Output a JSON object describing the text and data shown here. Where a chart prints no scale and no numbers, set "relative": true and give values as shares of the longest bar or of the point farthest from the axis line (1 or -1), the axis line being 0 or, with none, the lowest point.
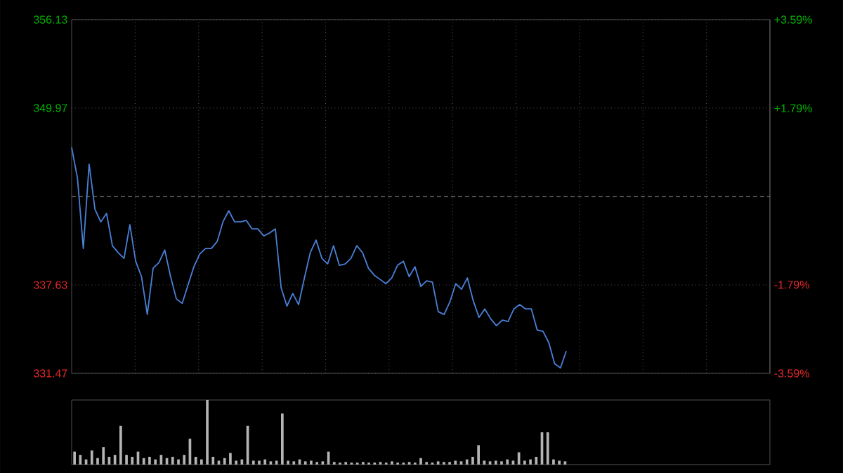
{
  "chart_data": [
    {
      "type": "line",
      "categories": [
        null,
        null,
        null,
        null,
        null,
        null,
        null,
        null,
        null,
        null,
        null,
        null,
        null,
        null,
        null,
        null,
        null,
        null,
        null,
        null,
        null,
        null,
        null,
        null,
        null,
        null,
        null,
        null,
        null,
        null,
        null,
        null,
        null,
        null,
        null,
        null,
        null,
        null,
        null,
        null,
        null,
        null,
        null,
        null,
        null,
        null,
        null,
        null,
        null,
        null,
        null,
        null,
        null,
        null,
        null,
        null,
        null,
        null,
        null,
        null,
        null,
        null,
        null,
        null,
        null,
        null,
        null,
        null,
        null,
        null,
        null,
        null,
        null,
        null,
        null,
        null,
        null,
        null,
        null,
        null,
        null,
        null,
        null,
        null,
        null,
        null,
        null,
        null,
        null,
        null,
        null,
        null,
        null,
        null,
        null,
        null,
        null,
        null,
        null,
        null,
        null,
        null,
        null,
        null,
        null,
        null,
        null,
        null,
        null,
        null,
        null,
        null,
        null,
        null,
        null,
        null,
        null,
        null,
        null,
        null,
        null
      ],
      "series": [
        {
          "color": "#4a80d8",
          "values": [
            347.22,
            345.07,
            340.17,
            346.05,
            342.91,
            342.03,
            342.62,
            340.37,
            339.88,
            339.49,
            341.84,
            339.29,
            338.21,
            335.57,
            338.8,
            339.19,
            340.07,
            338.21,
            336.65,
            336.35,
            337.63,
            338.9,
            339.78,
            340.17,
            340.17,
            340.66,
            342.03,
            342.81,
            342.03,
            342.03,
            342.13,
            341.54,
            341.54,
            341.05,
            341.25,
            341.54,
            337.43,
            336.16,
            337.04,
            336.26,
            338.12,
            339.88,
            340.76,
            339.49,
            339.1,
            340.37,
            339.0,
            339.1,
            339.49,
            340.37,
            339.88,
            338.8,
            338.31,
            338.02,
            337.72,
            338.12,
            339.0,
            339.29,
            338.21,
            338.9,
            337.53,
            337.92,
            337.82,
            335.77,
            335.57,
            336.45,
            337.72,
            337.33,
            338.12,
            336.55,
            335.37,
            335.96,
            335.28,
            334.79,
            335.18,
            335.08,
            335.96,
            336.26,
            335.96,
            335.96,
            334.49,
            334.4,
            333.61,
            332.14,
            331.85,
            333.02,
            null,
            null,
            null,
            null,
            null,
            null,
            null,
            null,
            null,
            null,
            null,
            null,
            null,
            null,
            null,
            null,
            null,
            null,
            null,
            null,
            null,
            null,
            null,
            null,
            null,
            null,
            null,
            null,
            null,
            null,
            null,
            null,
            null,
            null,
            null
          ]
        }
      ],
      "ylim": [
        331.47,
        356.13
      ],
      "yticks": [
        331.47,
        337.63,
        349.97,
        356.13
      ],
      "y2lim": [
        -3.59,
        3.59
      ],
      "y2ticks": [
        {
          "value": -3.59,
          "label": "-3.59%"
        },
        {
          "value": -1.79,
          "label": "-1.79%"
        },
        {
          "value": 1.79,
          "label": "+1.79%"
        },
        {
          "value": 3.59,
          "label": "+3.59%"
        }
      ],
      "ref_lines": [
        {
          "axis": "y",
          "value": 343.8,
          "color": "#9a9a9a",
          "line_style": "dashed"
        }
      ],
      "grid": true
    },
    {
      "type": "bar",
      "relative": true,
      "color": "#b4b4b4",
      "categories": [
        null,
        null,
        null,
        null,
        null,
        null,
        null,
        null,
        null,
        null,
        null,
        null,
        null,
        null,
        null,
        null,
        null,
        null,
        null,
        null,
        null,
        null,
        null,
        null,
        null,
        null,
        null,
        null,
        null,
        null,
        null,
        null,
        null,
        null,
        null,
        null,
        null,
        null,
        null,
        null,
        null,
        null,
        null,
        null,
        null,
        null,
        null,
        null,
        null,
        null,
        null,
        null,
        null,
        null,
        null,
        null,
        null,
        null,
        null,
        null,
        null,
        null,
        null,
        null,
        null,
        null,
        null,
        null,
        null,
        null,
        null,
        null,
        null,
        null,
        null,
        null,
        null,
        null,
        null,
        null,
        null,
        null,
        null,
        null,
        null,
        null,
        null,
        null,
        null,
        null,
        null,
        null,
        null,
        null,
        null,
        null,
        null,
        null,
        null,
        null,
        null,
        null,
        null,
        null,
        null,
        null,
        null,
        null,
        null,
        null,
        null,
        null,
        null,
        null,
        null,
        null,
        null,
        null,
        null,
        null,
        null
      ],
      "values": [
        0.2,
        0.15,
        0.08,
        0.22,
        0.1,
        0.27,
        0.12,
        0.15,
        0.6,
        0.15,
        0.12,
        0.2,
        0.1,
        0.12,
        0.08,
        0.15,
        0.1,
        0.12,
        0.08,
        0.15,
        0.4,
        0.12,
        0.08,
        1.0,
        0.12,
        0.06,
        0.1,
        0.18,
        0.06,
        0.08,
        0.6,
        0.06,
        0.06,
        0.08,
        0.05,
        0.06,
        0.79,
        0.06,
        0.05,
        0.08,
        0.05,
        0.06,
        0.04,
        0.05,
        0.2,
        0.04,
        0.03,
        0.04,
        0.03,
        0.03,
        0.04,
        0.03,
        0.03,
        0.04,
        0.03,
        0.05,
        0.03,
        0.03,
        0.04,
        0.03,
        0.1,
        0.04,
        0.03,
        0.05,
        0.04,
        0.04,
        0.06,
        0.05,
        0.08,
        0.12,
        0.3,
        0.06,
        0.05,
        0.06,
        0.05,
        0.08,
        0.06,
        0.19,
        0.06,
        0.08,
        0.12,
        0.5,
        0.5,
        0.08,
        0.06,
        0.05,
        null,
        null,
        null,
        null,
        null,
        null,
        null,
        null,
        null,
        null,
        null,
        null,
        null,
        null,
        null,
        null,
        null,
        null,
        null,
        null,
        null,
        null,
        null,
        null,
        null,
        null,
        null,
        null,
        null,
        null,
        null,
        null,
        null,
        null,
        null
      ]
    }
  ]
}
